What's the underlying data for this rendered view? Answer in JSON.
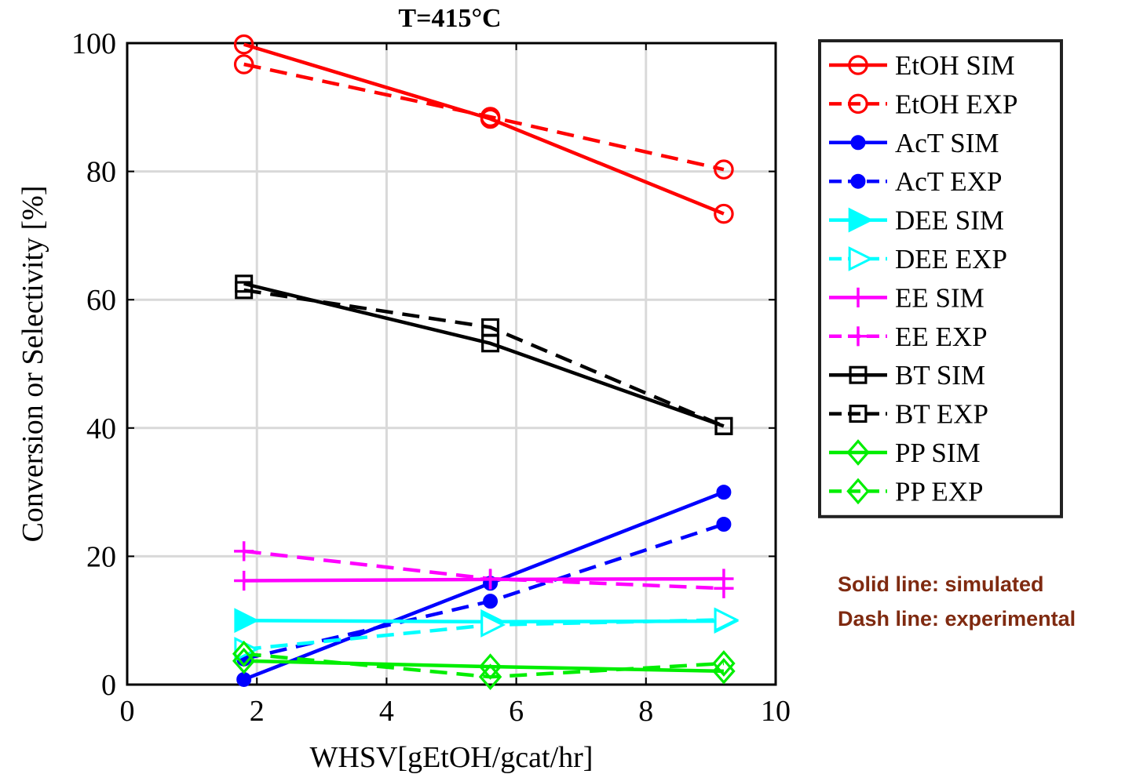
{
  "chart_data": {
    "type": "line",
    "title": "T=415°C",
    "xlabel": "WHSV[gEtOH/gcat/hr]",
    "ylabel": "Conversion or Selectivity [%]",
    "xlim": [
      0,
      10
    ],
    "ylim": [
      0,
      100
    ],
    "xticks": [
      0,
      2,
      4,
      6,
      8,
      10
    ],
    "yticks": [
      0,
      20,
      40,
      60,
      80,
      100
    ],
    "grid": true,
    "legend_position": "outside-right-top",
    "x": [
      1.8,
      5.6,
      9.2
    ],
    "series": [
      {
        "name": "EtOH SIM",
        "values": [
          99.8,
          88.2,
          73.4
        ],
        "color": "#ff0000",
        "dash": "solid",
        "marker": "circle-open"
      },
      {
        "name": "EtOH EXP",
        "values": [
          96.7,
          88.5,
          80.3
        ],
        "color": "#ff0000",
        "dash": "dashed",
        "marker": "circle-open"
      },
      {
        "name": "AcT SIM",
        "values": [
          0.8,
          15.8,
          30.0
        ],
        "color": "#0000ff",
        "dash": "solid",
        "marker": "circle-filled"
      },
      {
        "name": "AcT EXP",
        "values": [
          4.0,
          13.0,
          25.0
        ],
        "color": "#0000ff",
        "dash": "dashed",
        "marker": "circle-filled"
      },
      {
        "name": "DEE SIM",
        "values": [
          10.0,
          9.8,
          9.9
        ],
        "color": "#00ffff",
        "dash": "solid",
        "marker": "triangle-right-filled"
      },
      {
        "name": "DEE EXP",
        "values": [
          5.5,
          9.3,
          10.1
        ],
        "color": "#00ffff",
        "dash": "dashed",
        "marker": "triangle-right-open"
      },
      {
        "name": "EE SIM",
        "values": [
          16.2,
          16.4,
          16.5
        ],
        "color": "#ff00ff",
        "dash": "solid",
        "marker": "plus"
      },
      {
        "name": "EE EXP",
        "values": [
          20.8,
          16.5,
          15.0
        ],
        "color": "#ff00ff",
        "dash": "dashed",
        "marker": "plus"
      },
      {
        "name": "BT SIM",
        "values": [
          62.5,
          53.2,
          40.3
        ],
        "color": "#000000",
        "dash": "solid",
        "marker": "square-open"
      },
      {
        "name": "BT EXP",
        "values": [
          61.5,
          55.7,
          40.3
        ],
        "color": "#000000",
        "dash": "dashed",
        "marker": "square-open"
      },
      {
        "name": "PP SIM",
        "values": [
          3.7,
          2.8,
          2.1
        ],
        "color": "#00ee00",
        "dash": "solid",
        "marker": "diamond-open"
      },
      {
        "name": "PP EXP",
        "values": [
          4.8,
          1.2,
          3.3
        ],
        "color": "#00ee00",
        "dash": "dashed",
        "marker": "diamond-open"
      }
    ],
    "annotations": [
      {
        "text": "Solid line: simulated",
        "color": "#7f2a10"
      },
      {
        "text": "Dash line: experimental",
        "color": "#7f2a10"
      }
    ]
  }
}
